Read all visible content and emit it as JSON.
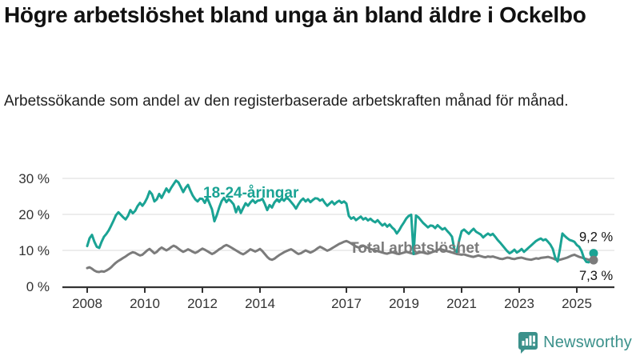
{
  "header": {
    "title": "Högre arbetslöshet bland unga än bland äldre i Ockelbo",
    "subtitle": "Arbetssökande som andel av den registerbaserade arbetskraften månad för månad."
  },
  "chart_data": {
    "type": "line",
    "x_start": "2008-01",
    "x_end": "2025-08",
    "x_ticks": [
      {
        "label": "2008",
        "year": 2008
      },
      {
        "label": "2010",
        "year": 2010
      },
      {
        "label": "2012",
        "year": 2012
      },
      {
        "label": "2014",
        "year": 2014
      },
      {
        "label": "2017",
        "year": 2017
      },
      {
        "label": "2019",
        "year": 2019
      },
      {
        "label": "2021",
        "year": 2021
      },
      {
        "label": "2023",
        "year": 2023
      },
      {
        "label": "2025",
        "year": 2025
      }
    ],
    "y_ticks": [
      {
        "label": "30 %",
        "value": 30
      },
      {
        "label": "20 %",
        "value": 20
      },
      {
        "label": "10 %",
        "value": 10
      },
      {
        "label": "0 %",
        "value": 0
      }
    ],
    "ylim": [
      0,
      31
    ],
    "grid": true,
    "legend": "inline-labels",
    "series": [
      {
        "name": "18-24-åringar",
        "color": "#1aa394",
        "end_label": "9,2 %",
        "values": [
          11.2,
          13.4,
          14.3,
          12.4,
          11.0,
          10.7,
          12.4,
          13.8,
          14.6,
          15.6,
          16.9,
          18.3,
          19.8,
          20.6,
          19.9,
          19.2,
          18.6,
          19.6,
          21.2,
          20.3,
          21.0,
          22.3,
          23.2,
          22.4,
          23.3,
          24.6,
          26.4,
          25.6,
          23.6,
          24.2,
          25.7,
          24.6,
          25.9,
          27.2,
          26.2,
          27.4,
          28.4,
          29.4,
          28.9,
          27.6,
          26.2,
          27.4,
          28.2,
          26.6,
          25.2,
          24.2,
          23.6,
          24.4,
          24.3,
          23.2,
          24.6,
          23.0,
          21.4,
          18.1,
          19.8,
          21.9,
          23.7,
          24.6,
          23.4,
          24.2,
          23.6,
          22.8,
          20.6,
          22.2,
          20.4,
          21.8,
          23.1,
          22.4,
          23.3,
          24.0,
          23.2,
          23.8,
          23.9,
          24.3,
          22.9,
          21.2,
          22.6,
          21.9,
          23.3,
          24.1,
          23.5,
          24.4,
          23.8,
          24.6,
          24.2,
          23.4,
          22.6,
          21.6,
          22.8,
          23.8,
          24.4,
          23.6,
          24.2,
          23.4,
          24.0,
          24.5,
          24.4,
          23.8,
          24.2,
          23.2,
          22.4,
          23.0,
          23.6,
          22.8,
          23.4,
          23.8,
          23.2,
          23.6,
          23.0,
          19.6,
          18.8,
          19.2,
          18.4,
          18.9,
          19.4,
          18.6,
          19.0,
          18.3,
          18.8,
          18.2,
          17.8,
          18.4,
          17.6,
          16.9,
          17.4,
          16.6,
          17.2,
          16.4,
          15.8,
          14.7,
          15.6,
          16.8,
          17.8,
          18.9,
          19.6,
          19.9,
          9.0,
          19.7,
          19.2,
          18.4,
          17.6,
          17.0,
          16.4,
          16.9,
          16.8,
          16.2,
          17.0,
          16.4,
          15.8,
          16.2,
          15.4,
          14.7,
          13.8,
          10.2,
          9.6,
          12.8,
          15.3,
          15.8,
          15.2,
          14.6,
          15.4,
          16.0,
          15.2,
          14.8,
          14.4,
          13.6,
          14.2,
          14.7,
          14.2,
          14.6,
          13.8,
          12.9,
          12.2,
          11.4,
          10.6,
          9.8,
          9.2,
          9.6,
          10.2,
          9.4,
          9.8,
          10.4,
          9.6,
          10.2,
          10.8,
          11.4,
          12.0,
          12.6,
          13.0,
          13.3,
          12.8,
          13.1,
          12.4,
          11.6,
          10.4,
          8.0,
          6.9,
          10.5,
          14.7,
          14.0,
          13.4,
          12.9,
          12.7,
          12.4,
          11.5,
          11.0,
          9.8,
          7.8,
          6.8,
          6.7,
          7.4,
          9.2
        ]
      },
      {
        "name": "Total arbetslöshet",
        "color": "#7b7b7b",
        "end_label": "7,3 %",
        "values": [
          5.1,
          5.3,
          4.9,
          4.4,
          4.1,
          4.0,
          4.2,
          4.1,
          4.4,
          4.8,
          5.3,
          6.0,
          6.6,
          7.1,
          7.5,
          7.9,
          8.3,
          8.8,
          9.2,
          9.5,
          9.3,
          8.9,
          8.6,
          8.8,
          9.4,
          10.0,
          10.4,
          9.8,
          9.2,
          9.6,
          10.3,
          10.8,
          10.4,
          10.0,
          10.4,
          10.9,
          11.3,
          11.0,
          10.5,
          10.0,
          9.6,
          9.9,
          10.3,
          10.0,
          9.6,
          9.3,
          9.6,
          10.1,
          10.5,
          10.2,
          9.8,
          9.4,
          9.0,
          9.3,
          9.8,
          10.3,
          10.7,
          11.2,
          11.5,
          11.2,
          10.8,
          10.4,
          10.0,
          9.6,
          9.2,
          8.9,
          9.3,
          9.8,
          10.3,
          10.0,
          9.7,
          10.0,
          10.4,
          9.8,
          9.0,
          8.2,
          7.6,
          7.4,
          7.7,
          8.2,
          8.7,
          9.1,
          9.5,
          9.8,
          10.1,
          10.3,
          9.9,
          9.4,
          9.0,
          9.2,
          9.6,
          10.0,
          9.7,
          9.4,
          9.7,
          10.1,
          10.6,
          11.0,
          10.7,
          10.3,
          9.9,
          10.2,
          10.6,
          11.0,
          11.4,
          11.8,
          12.1,
          12.4,
          12.6,
          12.3,
          11.9,
          11.5,
          11.1,
          10.8,
          11.0,
          11.3,
          11.0,
          10.7,
          10.4,
          10.2,
          10.0,
          9.8,
          9.6,
          9.4,
          9.2,
          9.1,
          9.3,
          9.5,
          9.3,
          9.1,
          9.0,
          9.2,
          9.4,
          9.6,
          9.4,
          9.2,
          9.0,
          9.1,
          9.3,
          9.5,
          9.4,
          9.2,
          9.1,
          9.3,
          9.6,
          9.8,
          10.1,
          10.4,
          10.2,
          10.0,
          9.8,
          9.6,
          9.4,
          9.2,
          9.0,
          8.9,
          8.8,
          8.9,
          8.7,
          8.5,
          8.3,
          8.2,
          8.4,
          8.6,
          8.4,
          8.2,
          8.1,
          8.3,
          8.2,
          8.3,
          8.1,
          7.9,
          7.7,
          7.6,
          7.8,
          8.0,
          7.9,
          7.7,
          7.6,
          7.8,
          7.9,
          8.0,
          7.8,
          7.6,
          7.5,
          7.4,
          7.6,
          7.8,
          7.7,
          7.9,
          8.0,
          8.1,
          8.2,
          8.0,
          7.8,
          7.5,
          7.3,
          7.4,
          7.6,
          7.8,
          8.0,
          8.3,
          8.6,
          8.8,
          8.5,
          8.2,
          8.0,
          7.8,
          7.6,
          7.4,
          7.2,
          7.3
        ]
      }
    ]
  },
  "footer": {
    "brand": "Newsworthy",
    "brand_color": "#3b918b"
  },
  "colors": {
    "axis_text": "#333333",
    "grid": "#e2e2e2",
    "axis_line": "#333333",
    "end_label_text": "#111111"
  }
}
